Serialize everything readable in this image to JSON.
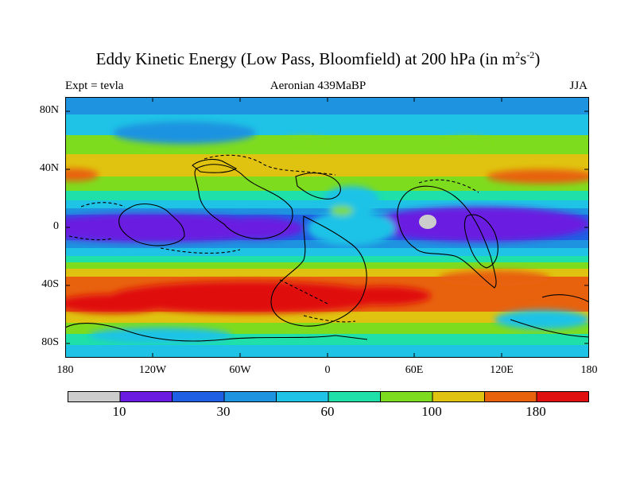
{
  "title": {
    "main": "Eddy Kinetic Energy (Low Pass, Bloomfield) at 200 hPa (in m",
    "sup1": "2",
    "mid": "s",
    "sup2": "-2",
    "end": ")"
  },
  "subtitle": {
    "left": "Expt = tevla",
    "center": "Aeronian 439MaBP",
    "right": "JJA"
  },
  "axes": {
    "lat_labels": [
      "80N",
      "40N",
      "0",
      "40S",
      "80S"
    ],
    "lon_labels": [
      "180",
      "120W",
      "60W",
      "0",
      "60E",
      "120E",
      "180"
    ]
  },
  "colorbar": {
    "colors": [
      "#cccccc",
      "#6a1de0",
      "#1f5fe3",
      "#1e93e0",
      "#1fc3e6",
      "#1fe0a8",
      "#7edc1f",
      "#e0c310",
      "#e8620e",
      "#e01010"
    ],
    "labels": [
      "10",
      "30",
      "60",
      "100",
      "180"
    ]
  },
  "legend_note": "Filled contour map of eddy kinetic energy over a paleogeographic continental outline"
}
